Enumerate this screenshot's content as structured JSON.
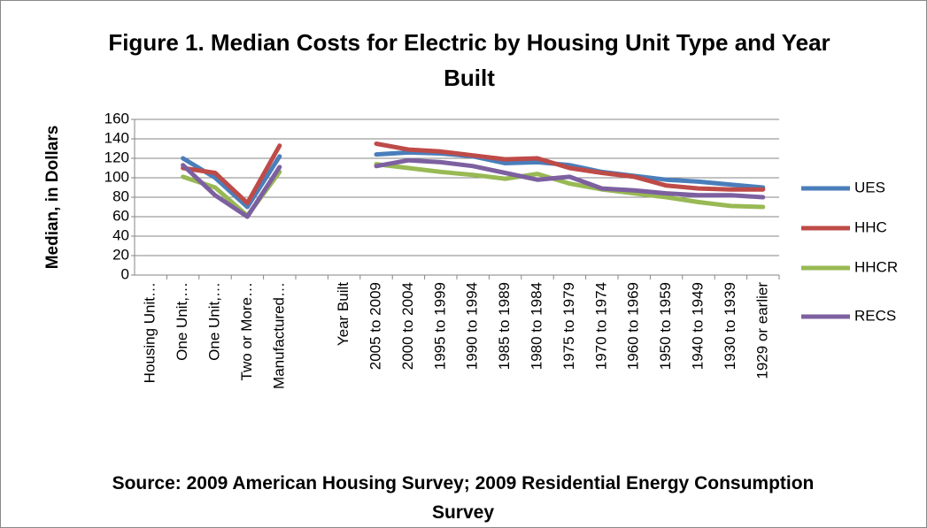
{
  "chart_data": {
    "type": "line",
    "title": "Figure 1.  Median Costs for Electric by Housing Unit Type and Year Built",
    "y_label": "Median, in Dollars",
    "source": "Source:  2009 American Housing Survey; 2009 Residential Energy Consumption Survey",
    "categories": [
      "Housing Unit…",
      "One Unit,…",
      "One Unit,…",
      "Two or More…",
      "Manufactured…",
      null,
      "Year Built",
      "2005 to 2009",
      "2000 to 2004",
      "1995 to 1999",
      "1990 to 1994",
      "1985 to 1989",
      "1980 to 1984",
      "1975 to 1979",
      "1970 to 1974",
      "1960 to 1969",
      "1950 to 1959",
      "1940 to 1949",
      "1930 to 1939",
      "1929 or earlier"
    ],
    "series": [
      {
        "name": "UES",
        "color": "#4a7ebb",
        "values": [
          null,
          120,
          100,
          70,
          122,
          null,
          null,
          124,
          126,
          125,
          122,
          115,
          116,
          113,
          106,
          102,
          98,
          96,
          93,
          90
        ]
      },
      {
        "name": "HHC",
        "color": "#be4b48",
        "values": [
          null,
          110,
          105,
          74,
          133,
          null,
          null,
          135,
          129,
          127,
          123,
          119,
          120,
          110,
          105,
          101,
          92,
          89,
          88,
          88
        ]
      },
      {
        "name": "HHCR",
        "color": "#98b954",
        "values": [
          null,
          101,
          90,
          61,
          106,
          null,
          null,
          114,
          110,
          106,
          103,
          99,
          104,
          94,
          88,
          84,
          80,
          75,
          71,
          70
        ]
      },
      {
        "name": "RECS",
        "color": "#7d60a0",
        "values": [
          null,
          113,
          82,
          60,
          111,
          null,
          null,
          112,
          118,
          116,
          112,
          105,
          98,
          101,
          89,
          87,
          84,
          82,
          82,
          80
        ]
      }
    ],
    "ylim": [
      0,
      160
    ],
    "yticks": [
      0,
      20,
      40,
      60,
      80,
      100,
      120,
      140,
      160
    ],
    "grid": true,
    "legend": "right"
  }
}
